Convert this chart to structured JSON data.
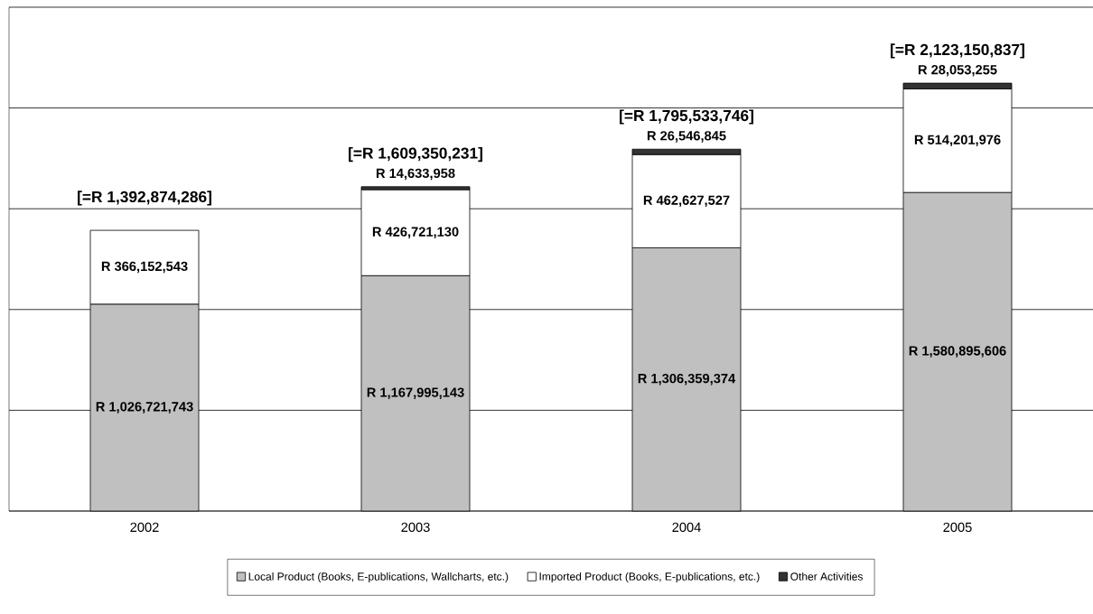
{
  "chart_data": {
    "type": "bar",
    "stacked": true,
    "categories": [
      "2002",
      "2003",
      "2004",
      "2005"
    ],
    "series": [
      {
        "name": "Local Product (Books, E-publications, Wallcharts, etc.)",
        "color": "#c0c0c0",
        "values": [
          1026721743,
          1167995143,
          1306359374,
          1580895606
        ],
        "value_labels": [
          "R 1,026,721,743",
          "R 1,167,995,143",
          "R 1,306,359,374",
          "R 1,580,895,606"
        ]
      },
      {
        "name": "Imported Product (Books, E-publications, etc.)",
        "color": "#ffffff",
        "values": [
          366152543,
          426721130,
          462627527,
          514201976
        ],
        "value_labels": [
          "R 366,152,543",
          "R 426,721,130",
          "R 462,627,527",
          "R 514,201,976"
        ]
      },
      {
        "name": "Other Activities",
        "color": "#333333",
        "values": [
          null,
          14633958,
          26546845,
          28053255
        ],
        "value_labels": [
          null,
          "R 14,633,958",
          "R 26,546,845",
          "R 28,053,255"
        ]
      }
    ],
    "totals": [
      "[=R 1,392,874,286]",
      "[=R 1,609,350,231]",
      "[=R 1,795,533,746]",
      "[=R 2,123,150,837]"
    ],
    "ylim": [
      0,
      2500000000
    ],
    "yticks": [
      {
        "value": 0,
        "label": null
      },
      {
        "value": 500000000,
        "label": null
      },
      {
        "value": 1000000000,
        "label": null
      },
      {
        "value": 1500000000,
        "label": null
      },
      {
        "value": 2000000000,
        "label": null
      },
      {
        "value": 2500000000,
        "label": null
      }
    ],
    "tick_labels": "x",
    "grid": "y",
    "legend": "bottom"
  }
}
